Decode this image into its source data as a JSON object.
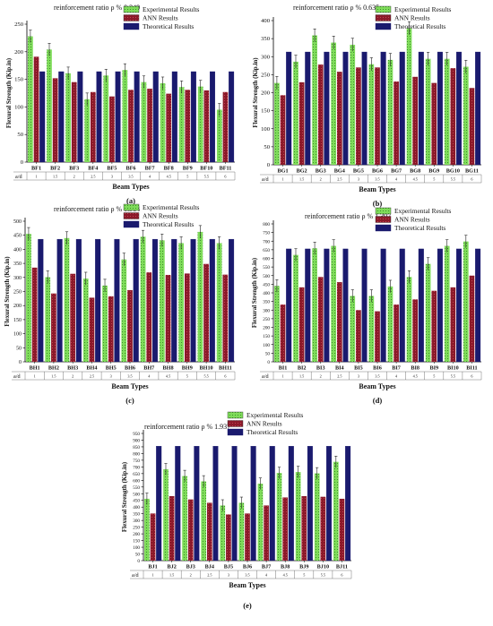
{
  "legend": {
    "experimental": "Experimental Results",
    "ann": "ANN Results",
    "theoretical": "Theoretical Results"
  },
  "colors": {
    "experimental": "#7fdc5a",
    "ann": "#8b1a2a",
    "theoretical": "#1a1a6e",
    "error_bar": "#222222"
  },
  "row_label": "a/d",
  "ad_values": [
    "1",
    "1.5",
    "2",
    "2.5",
    "3",
    "3.5",
    "4",
    "4.5",
    "5",
    "5.5",
    "6"
  ],
  "chart_data": [
    {
      "type": "bar",
      "panel": "(a)",
      "title": "reinforcement ratio ρ % 0.349",
      "xlabel": "Beam Types",
      "ylabel": "Flexural Strength (Kip.in)",
      "ylim": [
        0,
        250
      ],
      "yticks": [
        "0",
        "50",
        "100",
        "150",
        "200",
        "250"
      ],
      "categories": [
        "BF1",
        "BF2",
        "BF3",
        "BF4",
        "BF5",
        "BF6",
        "BF7",
        "BF8",
        "BF9",
        "BF10",
        "BF11"
      ],
      "series": [
        {
          "name": "Experimental Results",
          "values": [
            228,
            204,
            161,
            114,
            157,
            167,
            145,
            143,
            136,
            137,
            95
          ]
        },
        {
          "name": "ANN Results",
          "values": [
            191,
            152,
            145,
            127,
            119,
            131,
            133,
            124,
            131,
            130,
            127
          ]
        },
        {
          "name": "Theoratical Results",
          "values": [
            164,
            164,
            164,
            164,
            164,
            164,
            164,
            164,
            164,
            164,
            164
          ]
        }
      ],
      "grid": false,
      "legend_position": "top-right"
    },
    {
      "type": "bar",
      "panel": "(b)",
      "title": "reinforcement ratio ρ % 0.635",
      "xlabel": "Beam Types",
      "ylabel": "Flexural Strength (Kip.in)",
      "ylim": [
        0,
        400
      ],
      "yticks": [
        "0",
        "50",
        "100",
        "150",
        "200",
        "250",
        "300",
        "350",
        "400"
      ],
      "categories": [
        "BG1",
        "BG2",
        "BG3",
        "BG4",
        "BG5",
        "BG6",
        "BG7",
        "BG8",
        "BG9",
        "BG10",
        "BG11"
      ],
      "series": [
        {
          "name": "Experimental Results",
          "values": [
            227,
            286,
            359,
            339,
            333,
            279,
            291,
            379,
            294,
            294,
            272
          ]
        },
        {
          "name": "ANN Results",
          "values": [
            193,
            229,
            278,
            258,
            270,
            270,
            231,
            244,
            227,
            268,
            213
          ]
        },
        {
          "name": "Theoratical Results",
          "values": [
            313,
            313,
            313,
            313,
            313,
            313,
            313,
            313,
            313,
            313,
            313
          ]
        }
      ],
      "grid": false,
      "legend_position": "top-right"
    },
    {
      "type": "bar",
      "panel": "(c)",
      "title": "reinforcement ratio ρ % 0.984",
      "xlabel": "Beam Types",
      "ylabel": "Flexural Strength (Kip.in)",
      "ylim": [
        0,
        500
      ],
      "yticks": [
        "0",
        "50",
        "100",
        "150",
        "200",
        "250",
        "300",
        "350",
        "400",
        "450",
        "500"
      ],
      "categories": [
        "BH1",
        "BH2",
        "BH3",
        "BH4",
        "BH5",
        "BH6",
        "BH7",
        "BH8",
        "BH9",
        "BH10",
        "BH11"
      ],
      "series": [
        {
          "name": "Experimental Results",
          "values": [
            455,
            301,
            440,
            296,
            271,
            364,
            445,
            432,
            422,
            462,
            422
          ]
        },
        {
          "name": "ANN Results",
          "values": [
            335,
            243,
            313,
            228,
            233,
            255,
            318,
            309,
            314,
            348,
            310
          ]
        },
        {
          "name": "Theoratical Results",
          "values": [
            436,
            436,
            436,
            436,
            436,
            436,
            436,
            436,
            436,
            436,
            436
          ]
        }
      ],
      "grid": false,
      "legend_position": "top-right"
    },
    {
      "type": "bar",
      "panel": "(d)",
      "title": "reinforcement ratio ρ % 1.397",
      "xlabel": "Beam Types",
      "ylabel": "Flexural Strength (Kip.in)",
      "ylim": [
        0,
        800
      ],
      "yticks": [
        "0",
        "50",
        "100",
        "150",
        "200",
        "250",
        "300",
        "350",
        "400",
        "450",
        "500",
        "550",
        "600",
        "650",
        "700",
        "750",
        "800"
      ],
      "categories": [
        "BI1",
        "BI2",
        "BI3",
        "BI4",
        "BI5",
        "BI6",
        "BI7",
        "BI8",
        "BI9",
        "BI10",
        "BI11"
      ],
      "series": [
        {
          "name": "Experimental Results",
          "values": [
            440,
            620,
            658,
            672,
            382,
            382,
            437,
            492,
            568,
            672,
            698
          ]
        },
        {
          "name": "ANN Results",
          "values": [
            332,
            432,
            492,
            462,
            300,
            293,
            332,
            362,
            412,
            432,
            500
          ]
        },
        {
          "name": "Theoratical Results",
          "values": [
            655,
            655,
            655,
            655,
            655,
            655,
            655,
            655,
            655,
            655,
            655
          ]
        }
      ],
      "grid": false,
      "legend_position": "top-right"
    },
    {
      "type": "bar",
      "panel": "(e)",
      "title": "reinforcement ratio ρ % 1.937",
      "xlabel": "Beam Types",
      "ylabel": "Flexural Strength (Kip.in)",
      "ylim": [
        0,
        950
      ],
      "yticks": [
        "0",
        "50",
        "100",
        "150",
        "200",
        "250",
        "300",
        "350",
        "400",
        "450",
        "500",
        "550",
        "600",
        "650",
        "700",
        "750",
        "800",
        "850",
        "900",
        "950"
      ],
      "categories": [
        "BJ1",
        "BJ2",
        "BJ3",
        "BJ4",
        "BJ5",
        "BJ6",
        "BJ7",
        "BJ8",
        "BJ9",
        "BJ10",
        "BJ11"
      ],
      "series": [
        {
          "name": "Experimental Results",
          "values": [
            462,
            683,
            632,
            592,
            412,
            432,
            575,
            655,
            662,
            652,
            738
          ]
        },
        {
          "name": "ANN Results",
          "values": [
            352,
            482,
            457,
            432,
            345,
            352,
            412,
            472,
            482,
            477,
            462
          ]
        },
        {
          "name": "Theoratical Results",
          "values": [
            855,
            855,
            855,
            855,
            855,
            855,
            855,
            855,
            855,
            855,
            855
          ]
        }
      ],
      "grid": false,
      "legend_position": "top-center"
    }
  ]
}
